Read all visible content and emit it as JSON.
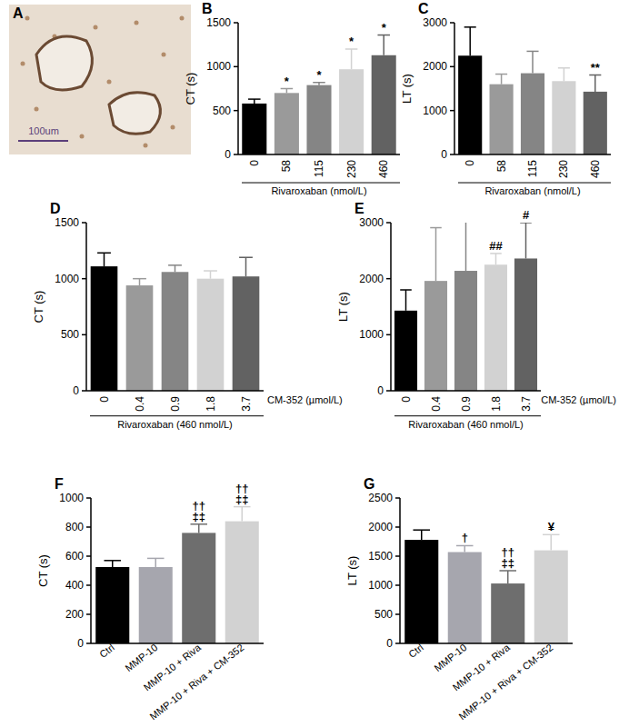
{
  "image": {
    "panel": "A",
    "scale_bar": "100um"
  },
  "chart_data": [
    {
      "panel": "B",
      "type": "bar",
      "y_label": "CT (s)",
      "x_label": "Rivaroxaban (nmol/L)",
      "categories": [
        "0",
        "58",
        "115",
        "230",
        "460"
      ],
      "values": [
        580,
        700,
        790,
        970,
        1130
      ],
      "errors": [
        50,
        50,
        30,
        230,
        230
      ],
      "colors": [
        "#000000",
        "#9a9a9a",
        "#858585",
        "#d2d2d2",
        "#626262"
      ],
      "ylim": [
        0,
        1500
      ],
      "yticks": [
        0,
        500,
        1000,
        1500
      ],
      "annotations": [
        null,
        [
          "*"
        ],
        [
          "*"
        ],
        [
          "*"
        ],
        [
          "*"
        ]
      ]
    },
    {
      "panel": "C",
      "type": "bar",
      "y_label": "LT (s)",
      "x_label": "Rivaroxaban (nmol/L)",
      "categories": [
        "0",
        "58",
        "115",
        "230",
        "460"
      ],
      "values": [
        2250,
        1600,
        1850,
        1670,
        1430
      ],
      "errors": [
        650,
        230,
        500,
        300,
        380
      ],
      "colors": [
        "#000000",
        "#9a9a9a",
        "#858585",
        "#d2d2d2",
        "#626262"
      ],
      "ylim": [
        0,
        3000
      ],
      "yticks": [
        0,
        1000,
        2000,
        3000
      ],
      "annotations": [
        null,
        null,
        null,
        null,
        [
          "**"
        ]
      ]
    },
    {
      "panel": "D",
      "type": "bar",
      "y_label": "CT (s)",
      "x_label": "CM-352 (µmol/L)",
      "x_label_2": "Rivaroxaban (460 nmol/L)",
      "categories": [
        "0",
        "0.4",
        "0.9",
        "1.8",
        "3.7"
      ],
      "values": [
        1110,
        940,
        1060,
        1000,
        1020
      ],
      "errors": [
        120,
        60,
        60,
        70,
        170
      ],
      "colors": [
        "#000000",
        "#9a9a9a",
        "#858585",
        "#d2d2d2",
        "#626262"
      ],
      "ylim": [
        0,
        1500
      ],
      "yticks": [
        0,
        500,
        1000,
        1500
      ],
      "annotations": [
        null,
        null,
        null,
        null,
        null
      ]
    },
    {
      "panel": "E",
      "type": "bar",
      "y_label": "LT (s)",
      "x_label": "CM-352 (µmol/L)",
      "x_label_2": "Rivaroxaban (460 nmol/L)",
      "categories": [
        "0",
        "0.4",
        "0.9",
        "1.8",
        "3.7"
      ],
      "values": [
        1430,
        1960,
        2140,
        2250,
        2360
      ],
      "errors": [
        370,
        950,
        900,
        200,
        640
      ],
      "colors": [
        "#000000",
        "#9a9a9a",
        "#858585",
        "#d2d2d2",
        "#626262"
      ],
      "ylim": [
        0,
        3000
      ],
      "yticks": [
        0,
        1000,
        2000,
        3000
      ],
      "annotations": [
        null,
        null,
        null,
        [
          "##"
        ],
        [
          "#"
        ]
      ]
    },
    {
      "panel": "F",
      "type": "bar",
      "y_label": "CT (s)",
      "categories": [
        "Ctrl",
        "MMP-10",
        "MMP-10 + Riva",
        "MMP-10 + Riva + CM-352"
      ],
      "values": [
        525,
        525,
        760,
        840
      ],
      "errors": [
        45,
        60,
        60,
        100
      ],
      "colors": [
        "#000000",
        "#a6a6ae",
        "#6e6e6e",
        "#d2d2d2"
      ],
      "ylim": [
        0,
        1000
      ],
      "yticks": [
        0,
        200,
        400,
        600,
        800,
        1000
      ],
      "annotations": [
        null,
        null,
        [
          "††",
          "‡‡"
        ],
        [
          "††",
          "‡‡"
        ]
      ]
    },
    {
      "panel": "G",
      "type": "bar",
      "y_label": "LT (s)",
      "categories": [
        "Ctrl",
        "MMP-10",
        "MMP-10 + Riva",
        "MMP-10 + Riva + CM-352"
      ],
      "values": [
        1780,
        1570,
        1030,
        1600
      ],
      "errors": [
        170,
        110,
        220,
        270
      ],
      "colors": [
        "#000000",
        "#a6a6ae",
        "#6e6e6e",
        "#d2d2d2"
      ],
      "ylim": [
        0,
        2500
      ],
      "yticks": [
        0,
        500,
        1000,
        1500,
        2000,
        2500
      ],
      "annotations": [
        null,
        [
          "†"
        ],
        [
          "††",
          "‡‡"
        ],
        [
          "¥"
        ]
      ]
    }
  ]
}
